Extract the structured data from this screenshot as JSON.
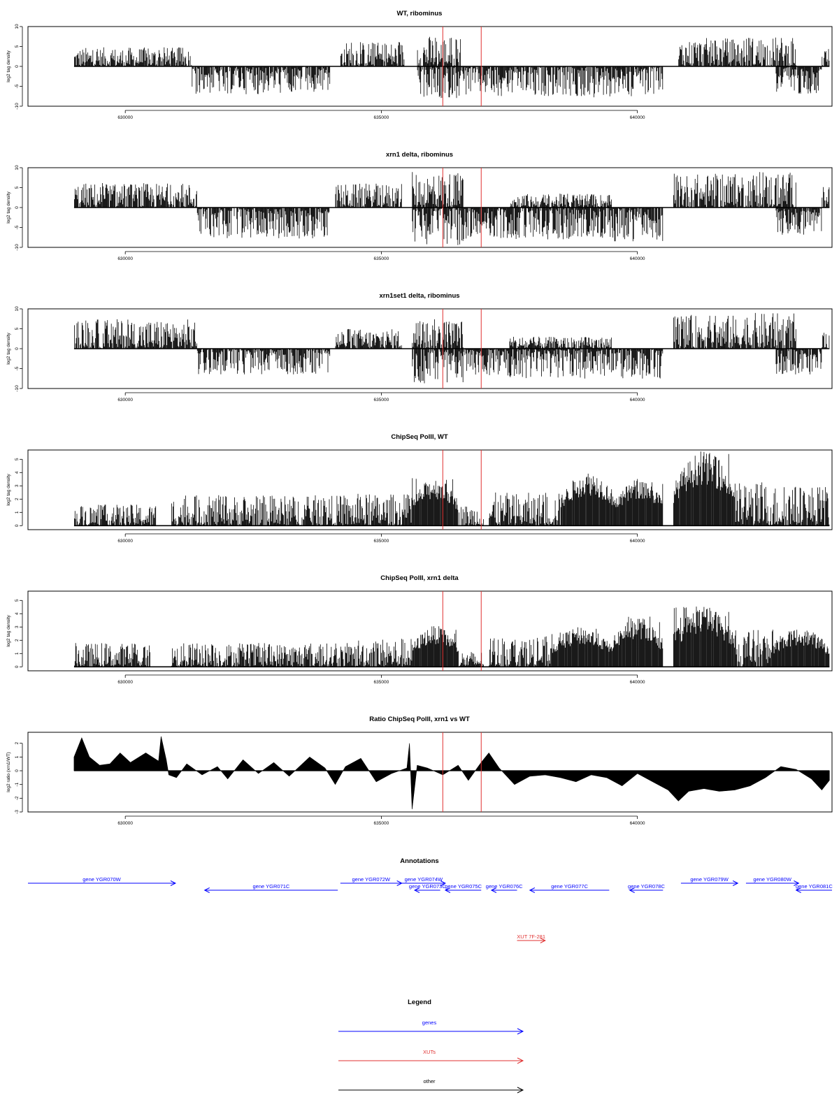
{
  "chart_data": [
    {
      "type": "bar",
      "title": "WT, ribominus",
      "ylabel": "log2 tag density",
      "xlim": [
        628100,
        643800
      ],
      "ylim": [
        -10,
        10
      ],
      "xticks": [
        630000,
        635000,
        640000
      ],
      "xtick_labels": [
        "630000",
        "635000",
        "640000"
      ],
      "yticks": [
        10,
        5,
        0,
        -5,
        -10
      ],
      "ytick_labels": [
        "10",
        "5",
        "0",
        "-5",
        "-10"
      ],
      "vlines": [
        636200,
        636950
      ],
      "vline_color": "#e03030",
      "bar_color": "#000000",
      "segments": [
        {
          "from": 629000,
          "to": 631300,
          "sign": 1,
          "peak": 4.8
        },
        {
          "from": 631300,
          "to": 634000,
          "sign": -1,
          "peak": 7.0
        },
        {
          "from": 634200,
          "to": 635450,
          "sign": 1,
          "peak": 6.2
        },
        {
          "from": 635700,
          "to": 636550,
          "sign": 1,
          "peak": 7.8
        },
        {
          "from": 635700,
          "to": 636550,
          "sign": -1,
          "peak": 8.0
        },
        {
          "from": 636550,
          "to": 637400,
          "sign": -1,
          "peak": 7.5
        },
        {
          "from": 637400,
          "to": 638800,
          "sign": -1,
          "peak": 7.5
        },
        {
          "from": 638800,
          "to": 639900,
          "sign": -1,
          "peak": 7.8
        },
        {
          "from": 639900,
          "to": 640500,
          "sign": -1,
          "peak": 7.0
        },
        {
          "from": 640800,
          "to": 642000,
          "sign": 1,
          "peak": 7.2
        },
        {
          "from": 642000,
          "to": 643100,
          "sign": 1,
          "peak": 7.5
        },
        {
          "from": 642700,
          "to": 643600,
          "sign": -1,
          "peak": 7.0
        },
        {
          "from": 643600,
          "to": 643750,
          "sign": 1,
          "peak": 4.5
        }
      ]
    },
    {
      "type": "bar",
      "title": "xrn1 delta, ribominus",
      "ylabel": "log2 tag density",
      "xlim": [
        628100,
        643800
      ],
      "ylim": [
        -10,
        10
      ],
      "xticks": [
        630000,
        635000,
        640000
      ],
      "xtick_labels": [
        "630000",
        "635000",
        "640000"
      ],
      "yticks": [
        10,
        5,
        0,
        -5,
        -10
      ],
      "ytick_labels": [
        "10",
        "5",
        "0",
        "-5",
        "-10"
      ],
      "vlines": [
        636200,
        636950
      ],
      "vline_color": "#e03030",
      "bar_color": "#000000",
      "segments": [
        {
          "from": 629000,
          "to": 631400,
          "sign": 1,
          "peak": 6.2
        },
        {
          "from": 631400,
          "to": 634000,
          "sign": -1,
          "peak": 7.8
        },
        {
          "from": 634100,
          "to": 635400,
          "sign": 1,
          "peak": 6.0
        },
        {
          "from": 635600,
          "to": 636600,
          "sign": 1,
          "peak": 9.0
        },
        {
          "from": 635600,
          "to": 636600,
          "sign": -1,
          "peak": 9.5
        },
        {
          "from": 636600,
          "to": 637500,
          "sign": -1,
          "peak": 8.0
        },
        {
          "from": 637500,
          "to": 639500,
          "sign": -1,
          "peak": 8.0
        },
        {
          "from": 637500,
          "to": 639500,
          "sign": 1,
          "peak": 3.5
        },
        {
          "from": 639500,
          "to": 640500,
          "sign": -1,
          "peak": 8.5
        },
        {
          "from": 640700,
          "to": 642000,
          "sign": 1,
          "peak": 8.5
        },
        {
          "from": 642000,
          "to": 643100,
          "sign": 1,
          "peak": 9.0
        },
        {
          "from": 642700,
          "to": 643600,
          "sign": -1,
          "peak": 7.0
        },
        {
          "from": 643600,
          "to": 643750,
          "sign": 1,
          "peak": 5.5
        }
      ]
    },
    {
      "type": "bar",
      "title": "xrn1set1 delta, ribominus",
      "ylabel": "log2 tag density",
      "xlim": [
        628100,
        643800
      ],
      "ylim": [
        -10,
        10
      ],
      "xticks": [
        630000,
        635000,
        640000
      ],
      "xtick_labels": [
        "630000",
        "635000",
        "640000"
      ],
      "yticks": [
        10,
        5,
        0,
        -5,
        -10
      ],
      "ytick_labels": [
        "10",
        "5",
        "0",
        "-5",
        "-10"
      ],
      "vlines": [
        636200,
        636950
      ],
      "vline_color": "#e03030",
      "bar_color": "#000000",
      "segments": [
        {
          "from": 629000,
          "to": 631400,
          "sign": 1,
          "peak": 7.5
        },
        {
          "from": 631400,
          "to": 634000,
          "sign": -1,
          "peak": 6.5
        },
        {
          "from": 634100,
          "to": 635400,
          "sign": 1,
          "peak": 5.0
        },
        {
          "from": 635600,
          "to": 636600,
          "sign": 1,
          "peak": 7.5
        },
        {
          "from": 635600,
          "to": 636600,
          "sign": -1,
          "peak": 9.0
        },
        {
          "from": 636600,
          "to": 637500,
          "sign": -1,
          "peak": 7.0
        },
        {
          "from": 637500,
          "to": 639500,
          "sign": -1,
          "peak": 7.5
        },
        {
          "from": 637500,
          "to": 639500,
          "sign": 1,
          "peak": 3.0
        },
        {
          "from": 639500,
          "to": 640500,
          "sign": -1,
          "peak": 7.5
        },
        {
          "from": 640700,
          "to": 642000,
          "sign": 1,
          "peak": 8.5
        },
        {
          "from": 642000,
          "to": 643100,
          "sign": 1,
          "peak": 9.0
        },
        {
          "from": 642700,
          "to": 643600,
          "sign": -1,
          "peak": 6.5
        },
        {
          "from": 643600,
          "to": 643750,
          "sign": 1,
          "peak": 4.0
        }
      ]
    },
    {
      "type": "bar",
      "title": "ChipSeq PolII, WT",
      "ylabel": "log2 tag density",
      "xlim": [
        628100,
        643800
      ],
      "ylim": [
        -0.3,
        5.7
      ],
      "xticks": [
        630000,
        635000,
        640000
      ],
      "xtick_labels": [
        "630000",
        "635000",
        "640000"
      ],
      "yticks": [
        0,
        1,
        2,
        3,
        4,
        5
      ],
      "ytick_labels": [
        "0",
        "1",
        "2",
        "3",
        "4",
        "5"
      ],
      "vlines": [
        636200,
        636950
      ],
      "vline_color": "#e03030",
      "bar_color": "#000000",
      "segments": [
        {
          "from": 629000,
          "to": 630600,
          "sign": 1,
          "peak": 1.6
        },
        {
          "from": 630900,
          "to": 632500,
          "sign": 1,
          "peak": 2.3
        },
        {
          "from": 632500,
          "to": 634500,
          "sign": 1,
          "peak": 2.3
        },
        {
          "from": 634500,
          "to": 635600,
          "sign": 1,
          "peak": 2.4
        },
        {
          "from": 635600,
          "to": 636500,
          "sign": 1,
          "peak": 3.6,
          "hump": true
        },
        {
          "from": 636500,
          "to": 637000,
          "sign": 1,
          "peak": 1.6
        },
        {
          "from": 637100,
          "to": 638500,
          "sign": 1,
          "peak": 2.5
        },
        {
          "from": 638500,
          "to": 639600,
          "sign": 1,
          "peak": 4.1,
          "hump": true
        },
        {
          "from": 639600,
          "to": 640500,
          "sign": 1,
          "peak": 3.6,
          "hump": true
        },
        {
          "from": 640700,
          "to": 641900,
          "sign": 1,
          "peak": 5.6,
          "hump": true
        },
        {
          "from": 641900,
          "to": 642600,
          "sign": 1,
          "peak": 3.3
        },
        {
          "from": 642600,
          "to": 643750,
          "sign": 1,
          "peak": 3.1
        }
      ]
    },
    {
      "type": "bar",
      "title": "ChipSeq PolII, xrn1 delta",
      "ylabel": "log2 tag density",
      "xlim": [
        628100,
        643800
      ],
      "ylim": [
        -0.3,
        5.7
      ],
      "xticks": [
        630000,
        635000,
        640000
      ],
      "xtick_labels": [
        "630000",
        "635000",
        "640000"
      ],
      "yticks": [
        0,
        1,
        2,
        3,
        4,
        5
      ],
      "ytick_labels": [
        "0",
        "1",
        "2",
        "3",
        "4",
        "5"
      ],
      "vlines": [
        636200,
        636950
      ],
      "vline_color": "#e03030",
      "bar_color": "#000000",
      "segments": [
        {
          "from": 629000,
          "to": 630500,
          "sign": 1,
          "peak": 1.8
        },
        {
          "from": 630900,
          "to": 632500,
          "sign": 1,
          "peak": 1.8
        },
        {
          "from": 632500,
          "to": 634500,
          "sign": 1,
          "peak": 1.8
        },
        {
          "from": 634500,
          "to": 635600,
          "sign": 1,
          "peak": 2.2
        },
        {
          "from": 635600,
          "to": 636500,
          "sign": 1,
          "peak": 3.1,
          "hump": true
        },
        {
          "from": 636500,
          "to": 637000,
          "sign": 1,
          "peak": 1.2
        },
        {
          "from": 637100,
          "to": 638300,
          "sign": 1,
          "peak": 2.3
        },
        {
          "from": 638300,
          "to": 639500,
          "sign": 1,
          "peak": 3.0,
          "hump": true
        },
        {
          "from": 639500,
          "to": 640500,
          "sign": 1,
          "peak": 3.8,
          "hump": true
        },
        {
          "from": 640700,
          "to": 641900,
          "sign": 1,
          "peak": 4.6,
          "hump": true
        },
        {
          "from": 641900,
          "to": 642600,
          "sign": 1,
          "peak": 2.8
        },
        {
          "from": 642600,
          "to": 643750,
          "sign": 1,
          "peak": 2.9,
          "hump": true
        }
      ]
    },
    {
      "type": "area",
      "title": "Ratio ChipSeq PolII, xrn1 vs WT",
      "ylabel": "log2 ratio (xrn1/WT)",
      "xlim": [
        628100,
        643800
      ],
      "ylim": [
        -3,
        2.8
      ],
      "xticks": [
        630000,
        635000,
        640000
      ],
      "xtick_labels": [
        "630000",
        "635000",
        "640000"
      ],
      "yticks": [
        2,
        1,
        0,
        -1,
        -2,
        -3
      ],
      "ytick_labels": [
        "2",
        "1",
        "0",
        "-1",
        "-2",
        "-3"
      ],
      "vlines": [
        636200,
        636950
      ],
      "vline_color": "#e03030",
      "fill_color": "#000000",
      "x": [
        629000,
        629150,
        629300,
        629500,
        629700,
        629900,
        630100,
        630400,
        630650,
        630700,
        630800,
        630850,
        631000,
        631200,
        631500,
        631800,
        632000,
        632300,
        632600,
        632900,
        633200,
        633600,
        633900,
        634100,
        634300,
        634600,
        634900,
        635200,
        635500,
        635550,
        635600,
        635700,
        635900,
        636200,
        636500,
        636700,
        636950,
        637100,
        637300,
        637600,
        637900,
        638200,
        638500,
        638800,
        639100,
        639400,
        639700,
        640000,
        640300,
        640600,
        640800,
        641000,
        641300,
        641600,
        641900,
        642200,
        642500,
        642800,
        643100,
        643400,
        643600,
        643750
      ],
      "y": [
        1.0,
        2.4,
        1.0,
        0.4,
        0.5,
        1.3,
        0.6,
        1.3,
        0.7,
        2.5,
        0.8,
        -0.3,
        -0.5,
        0.5,
        -0.3,
        0.3,
        -0.6,
        0.8,
        -0.2,
        0.6,
        -0.4,
        1.0,
        0.2,
        -1.0,
        0.3,
        0.9,
        -0.8,
        -0.2,
        0.2,
        2.0,
        -2.8,
        0.4,
        0.2,
        -0.3,
        0.4,
        -0.7,
        0.6,
        1.3,
        0.2,
        -1.0,
        -0.4,
        -0.3,
        -0.5,
        -0.8,
        -0.3,
        -0.5,
        -1.1,
        -0.2,
        -0.8,
        -1.4,
        -2.2,
        -1.5,
        -1.3,
        -1.5,
        -1.4,
        -1.1,
        -0.5,
        0.3,
        0.1,
        -0.6,
        -1.4,
        -0.7
      ]
    }
  ],
  "annotations": {
    "title": "Annotations",
    "xlim": [
      628100,
      643800
    ],
    "gene_color": "#0000ff",
    "xut_color": "#e03030",
    "features": [
      {
        "label": "gene YGR070W",
        "start": 628100,
        "end": 630980,
        "dir": 1,
        "row": 0,
        "kind": "gene"
      },
      {
        "label": "gene YGR071C",
        "start": 631550,
        "end": 634150,
        "dir": -1,
        "row": 1,
        "kind": "gene"
      },
      {
        "label": "gene YGR072W",
        "start": 634200,
        "end": 635400,
        "dir": 1,
        "row": 0,
        "kind": "gene"
      },
      {
        "label": "gene YGR074W",
        "start": 635400,
        "end": 636250,
        "dir": 1,
        "row": 0,
        "kind": "gene"
      },
      {
        "label": "gene YGR073C",
        "start": 635650,
        "end": 636150,
        "dir": -1,
        "row": 1,
        "kind": "gene"
      },
      {
        "label": "gene YGR075C",
        "start": 636250,
        "end": 636950,
        "dir": -1,
        "row": 1,
        "kind": "gene"
      },
      {
        "label": "gene YGR076C",
        "start": 637150,
        "end": 637650,
        "dir": -1,
        "row": 1,
        "kind": "gene"
      },
      {
        "label": "gene YGR077C",
        "start": 637900,
        "end": 639450,
        "dir": -1,
        "row": 1,
        "kind": "gene"
      },
      {
        "label": "gene YGR078C",
        "start": 639850,
        "end": 640500,
        "dir": -1,
        "row": 1,
        "kind": "gene"
      },
      {
        "label": "gene YGR079W",
        "start": 640850,
        "end": 641960,
        "dir": 1,
        "row": 0,
        "kind": "gene"
      },
      {
        "label": "gene YGR080W",
        "start": 642120,
        "end": 643150,
        "dir": 1,
        "row": 0,
        "kind": "gene"
      },
      {
        "label": "gene YGR081C",
        "start": 643100,
        "end": 643800,
        "dir": -1,
        "row": 1,
        "kind": "gene"
      },
      {
        "label": "XUT 7F-281",
        "start": 637650,
        "end": 638200,
        "dir": 1,
        "row": 2,
        "kind": "xut"
      }
    ]
  },
  "legend": {
    "title": "Legend",
    "items": [
      {
        "label": "genes",
        "color": "#0000ff"
      },
      {
        "label": "XUTs",
        "color": "#e03030"
      },
      {
        "label": "other",
        "color": "#000000"
      }
    ]
  }
}
